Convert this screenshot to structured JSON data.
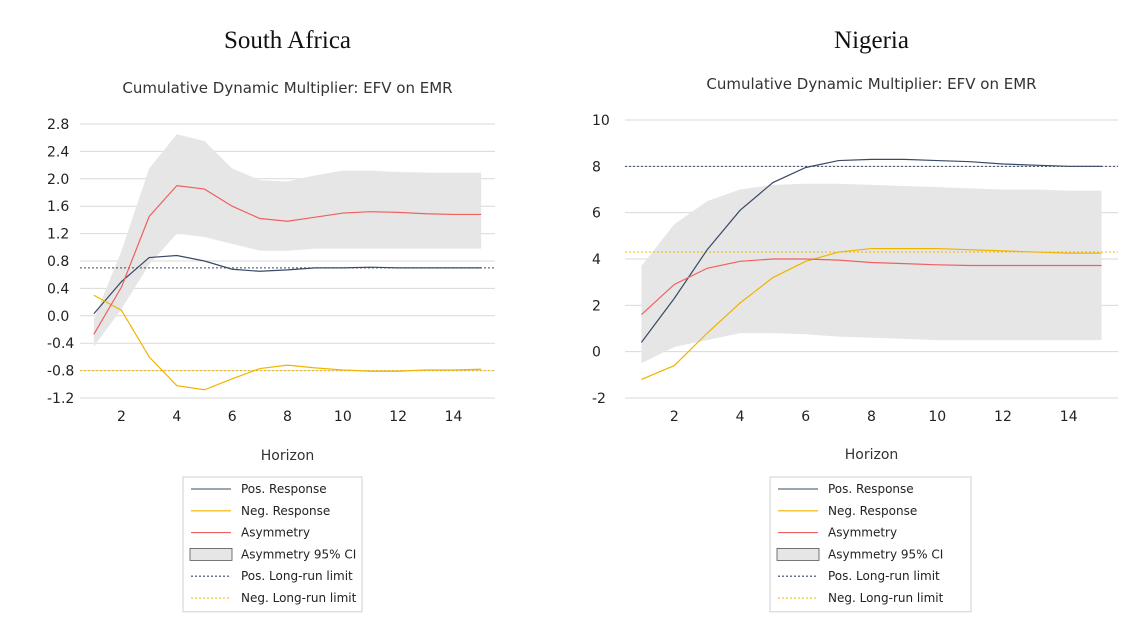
{
  "legend_items": [
    {
      "key": "pos",
      "label": "Pos. Response",
      "kind": "line",
      "color": "#3a4a66",
      "dash": ""
    },
    {
      "key": "neg",
      "label": "Neg. Response",
      "kind": "line",
      "color": "#f0b400",
      "dash": ""
    },
    {
      "key": "asym",
      "label": "Asymmetry",
      "kind": "line",
      "color": "#f06060",
      "dash": ""
    },
    {
      "key": "ci",
      "label": "Asymmetry 95% CI",
      "kind": "band",
      "color": "#e6e6e6",
      "dash": ""
    },
    {
      "key": "pos_lr",
      "label": "Pos. Long-run limit",
      "kind": "line",
      "color": "#3a4a66",
      "dash": "2,2"
    },
    {
      "key": "neg_lr",
      "label": "Neg. Long-run limit",
      "kind": "line",
      "color": "#f0b400",
      "dash": "2,2"
    }
  ],
  "chart_data": [
    {
      "type": "line",
      "panel_title": "South Africa",
      "title": "Cumulative Dynamic Multiplier: EFV on EMR",
      "xlabel": "Horizon",
      "ylabel": "",
      "xlim": [
        0.5,
        15.5
      ],
      "ylim": [
        -1.2,
        2.8
      ],
      "x_ticks": [
        2,
        4,
        6,
        8,
        10,
        12,
        14
      ],
      "y_ticks": [
        -1.2,
        -0.8,
        -0.4,
        0.0,
        0.4,
        0.8,
        1.2,
        1.6,
        2.0,
        2.4,
        2.8
      ],
      "y_tick_labels": [
        "-1.2",
        "-0.8",
        "-0.4",
        "0.0",
        "0.4",
        "0.8",
        "1.2",
        "1.6",
        "2.0",
        "2.4",
        "2.8"
      ],
      "x": [
        1,
        2,
        3,
        4,
        5,
        6,
        7,
        8,
        9,
        10,
        11,
        12,
        13,
        14,
        15
      ],
      "series": [
        {
          "name": "Pos. Response",
          "values": [
            0.03,
            0.5,
            0.85,
            0.88,
            0.8,
            0.68,
            0.65,
            0.67,
            0.7,
            0.7,
            0.71,
            0.7,
            0.7,
            0.7,
            0.7
          ]
        },
        {
          "name": "Neg. Response",
          "values": [
            0.3,
            0.08,
            -0.6,
            -1.02,
            -1.08,
            -0.92,
            -0.77,
            -0.72,
            -0.76,
            -0.79,
            -0.81,
            -0.81,
            -0.79,
            -0.79,
            -0.78
          ]
        },
        {
          "name": "Asymmetry",
          "values": [
            -0.27,
            0.42,
            1.45,
            1.9,
            1.85,
            1.6,
            1.42,
            1.38,
            1.44,
            1.5,
            1.52,
            1.51,
            1.49,
            1.48,
            1.48
          ]
        }
      ],
      "ci_band": {
        "name": "Asymmetry 95% CI",
        "upper": [
          -0.05,
          0.95,
          2.15,
          2.65,
          2.55,
          2.15,
          1.98,
          1.96,
          2.05,
          2.12,
          2.12,
          2.1,
          2.09,
          2.09,
          2.09
        ],
        "lower": [
          -0.45,
          0.1,
          0.75,
          1.2,
          1.15,
          1.05,
          0.95,
          0.95,
          0.98,
          0.98,
          0.98,
          0.98,
          0.98,
          0.98,
          0.98
        ]
      },
      "pos_long_run_limit": 0.7,
      "neg_long_run_limit": -0.8
    },
    {
      "type": "line",
      "panel_title": "Nigeria",
      "title": "Cumulative Dynamic Multiplier: EFV on EMR",
      "xlabel": "Horizon",
      "ylabel": "",
      "xlim": [
        0.5,
        15.5
      ],
      "ylim": [
        -2,
        10
      ],
      "x_ticks": [
        2,
        4,
        6,
        8,
        10,
        12,
        14
      ],
      "y_ticks": [
        -2,
        0,
        2,
        4,
        6,
        8,
        10
      ],
      "y_tick_labels": [
        "-2",
        "0",
        "2",
        "4",
        "6",
        "8",
        "10"
      ],
      "x": [
        1,
        2,
        3,
        4,
        5,
        6,
        7,
        8,
        9,
        10,
        11,
        12,
        13,
        14,
        15
      ],
      "series": [
        {
          "name": "Pos. Response",
          "values": [
            0.4,
            2.3,
            4.4,
            6.1,
            7.3,
            7.95,
            8.25,
            8.3,
            8.3,
            8.25,
            8.2,
            8.1,
            8.05,
            8.0,
            8.0
          ]
        },
        {
          "name": "Neg. Response",
          "values": [
            -1.2,
            -0.6,
            0.8,
            2.1,
            3.2,
            3.9,
            4.3,
            4.45,
            4.45,
            4.45,
            4.4,
            4.35,
            4.3,
            4.25,
            4.25
          ]
        },
        {
          "name": "Asymmetry",
          "values": [
            1.6,
            2.9,
            3.6,
            3.9,
            4.0,
            4.0,
            3.95,
            3.85,
            3.8,
            3.75,
            3.72,
            3.72,
            3.72,
            3.72,
            3.72
          ]
        }
      ],
      "ci_band": {
        "name": "Asymmetry 95% CI",
        "upper": [
          3.7,
          5.5,
          6.5,
          7.0,
          7.2,
          7.25,
          7.25,
          7.2,
          7.15,
          7.1,
          7.05,
          7.0,
          7.0,
          6.95,
          6.95
        ],
        "lower": [
          -0.5,
          0.2,
          0.5,
          0.8,
          0.8,
          0.75,
          0.65,
          0.6,
          0.55,
          0.5,
          0.5,
          0.5,
          0.5,
          0.5,
          0.5
        ]
      },
      "pos_long_run_limit": 8.0,
      "neg_long_run_limit": 4.3
    }
  ]
}
